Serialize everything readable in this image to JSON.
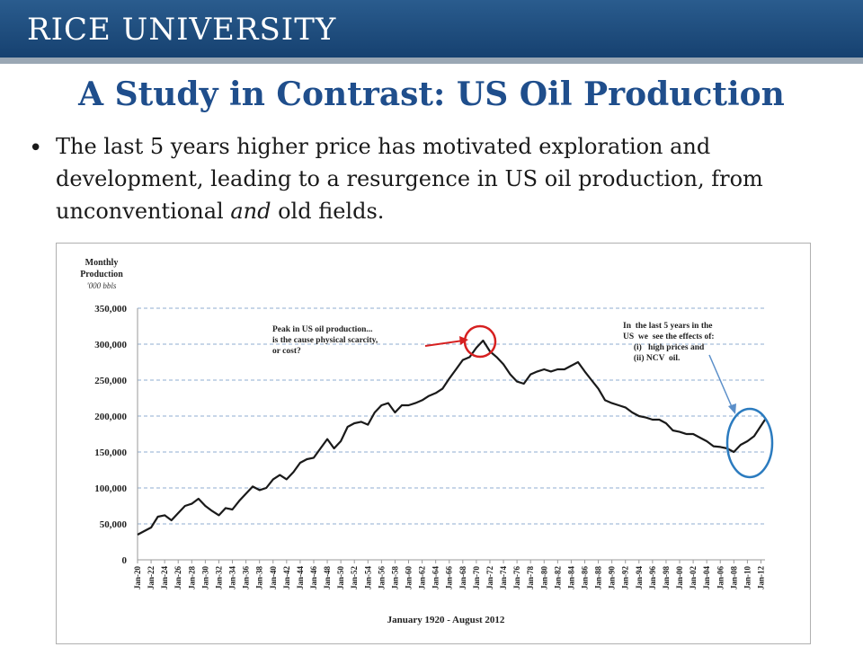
{
  "header": {
    "title": "RICE UNIVERSITY"
  },
  "slide": {
    "title": "A Study in Contrast: US Oil Production",
    "bullet_parts": [
      "The last 5 years higher price has motivated exploration and development, leading to a resurgence in US oil production, from unconventional ",
      "and",
      " old fields."
    ]
  },
  "colors": {
    "header_blue": "#1f4e79",
    "title_blue": "#1f4e8c",
    "annotation_red": "#d62020",
    "annotation_blue": "#2b7bbf",
    "series": "#1a1a1a"
  },
  "chart_data": {
    "type": "line",
    "ylabel_lines": [
      "Monthly",
      "Production",
      "'000 bbls"
    ],
    "xlabel": "January 1920 - August 2012",
    "ylim": [
      0,
      350000
    ],
    "yticks": [
      "0",
      "50,000",
      "100,000",
      "150,000",
      "200,000",
      "250,000",
      "300,000",
      "350,000"
    ],
    "xticks": [
      "Jan-20",
      "Jan-22",
      "Jan-24",
      "Jan-26",
      "Jan-28",
      "Jan-30",
      "Jan-32",
      "Jan-34",
      "Jan-36",
      "Jan-38",
      "Jan-40",
      "Jan-42",
      "Jan-44",
      "Jan-46",
      "Jan-48",
      "Jan-50",
      "Jan-52",
      "Jan-54",
      "Jan-56",
      "Jan-58",
      "Jan-60",
      "Jan-62",
      "Jan-64",
      "Jan-66",
      "Jan-68",
      "Jan-70",
      "Jan-72",
      "Jan-74",
      "Jan-76",
      "Jan-78",
      "Jan-80",
      "Jan-82",
      "Jan-84",
      "Jan-86",
      "Jan-88",
      "Jan-90",
      "Jan-92",
      "Jan-94",
      "Jan-96",
      "Jan-98",
      "Jan-00",
      "Jan-02",
      "Jan-04",
      "Jan-06",
      "Jan-08",
      "Jan-10",
      "Jan-12"
    ],
    "grid": true,
    "series": [
      {
        "x": [
          1920,
          1921,
          1922,
          1923,
          1924,
          1925,
          1926,
          1927,
          1928,
          1929,
          1930,
          1931,
          1932,
          1933,
          1934,
          1935,
          1936,
          1937,
          1938,
          1939,
          1940,
          1941,
          1942,
          1943,
          1944,
          1945,
          1946,
          1947,
          1948,
          1949,
          1950,
          1951,
          1952,
          1953,
          1954,
          1955,
          1956,
          1957,
          1958,
          1959,
          1960,
          1961,
          1962,
          1963,
          1964,
          1965,
          1966,
          1967,
          1968,
          1969,
          1970,
          1971,
          1972,
          1973,
          1974,
          1975,
          1976,
          1977,
          1978,
          1979,
          1980,
          1981,
          1982,
          1983,
          1984,
          1985,
          1986,
          1987,
          1988,
          1989,
          1990,
          1991,
          1992,
          1993,
          1994,
          1995,
          1996,
          1997,
          1998,
          1999,
          2000,
          2001,
          2002,
          2003,
          2004,
          2005,
          2006,
          2007,
          2008,
          2009,
          2010,
          2011,
          2012.6
        ],
        "y": [
          35000,
          40000,
          45000,
          60000,
          62000,
          55000,
          65000,
          75000,
          78000,
          85000,
          75000,
          68000,
          62000,
          72000,
          70000,
          82000,
          92000,
          102000,
          97000,
          100000,
          112000,
          118000,
          112000,
          122000,
          135000,
          140000,
          142000,
          155000,
          168000,
          155000,
          165000,
          185000,
          190000,
          192000,
          188000,
          205000,
          215000,
          218000,
          205000,
          215000,
          215000,
          218000,
          222000,
          228000,
          232000,
          238000,
          252000,
          265000,
          278000,
          282000,
          295000,
          305000,
          290000,
          282000,
          272000,
          258000,
          248000,
          245000,
          258000,
          262000,
          265000,
          262000,
          265000,
          265000,
          270000,
          275000,
          262000,
          250000,
          238000,
          222000,
          218000,
          215000,
          212000,
          205000,
          200000,
          198000,
          195000,
          195000,
          190000,
          180000,
          178000,
          175000,
          175000,
          170000,
          165000,
          158000,
          157000,
          155000,
          150000,
          160000,
          165000,
          172000,
          195000
        ]
      }
    ],
    "annotations": [
      {
        "lines": [
          "Peak in US oil production...",
          "is the cause physical scarcity,",
          "or cost?"
        ]
      },
      {
        "lines": [
          "In  the last 5 years in the",
          "US  we  see the effects of:",
          "     (i)   high prices and",
          "     (ii) NCV  oil."
        ]
      }
    ]
  }
}
